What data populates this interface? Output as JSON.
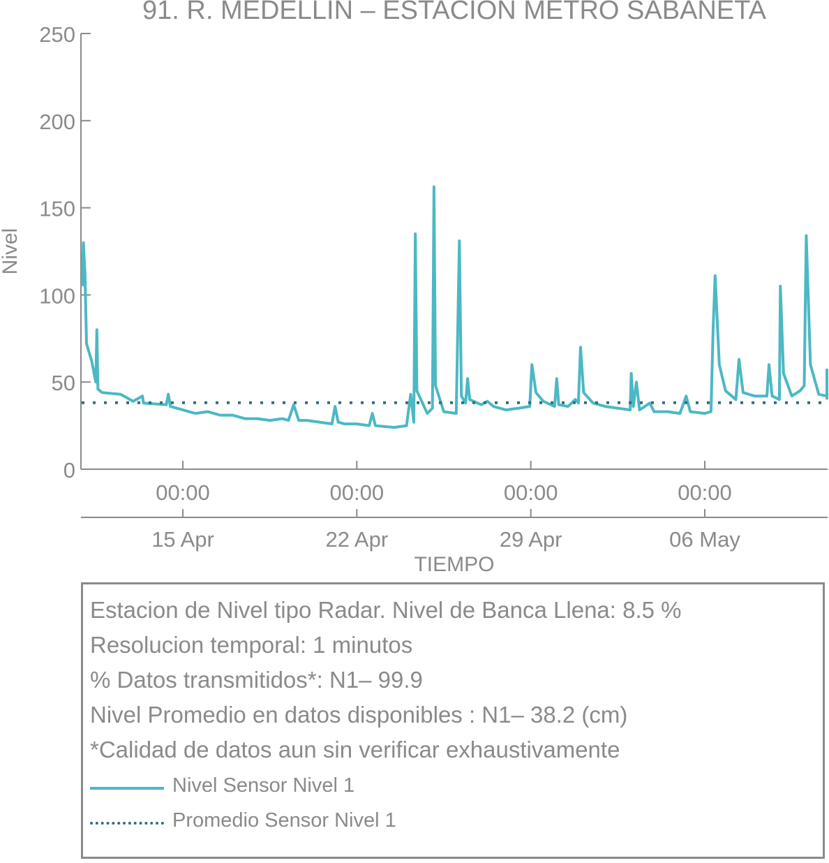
{
  "chart_data": {
    "type": "line",
    "title": "91. R. MEDELLIN – ESTACION METRO SABANETA",
    "xlabel": "TIEMPO",
    "ylabel": "Nivel",
    "ylim": [
      0,
      250
    ],
    "yticks": [
      "0",
      "50",
      "100",
      "150",
      "200",
      "250"
    ],
    "xlim_days": [
      "2024-04-09",
      "2024-05-12"
    ],
    "xticks": [
      {
        "time": "00:00",
        "date": "15 Apr",
        "day": "2024-04-15"
      },
      {
        "time": "00:00",
        "date": "22 Apr",
        "day": "2024-04-22"
      },
      {
        "time": "00:00",
        "date": "29 Apr",
        "day": "2024-04-29"
      },
      {
        "time": "00:00",
        "date": "06 May",
        "day": "2024-05-06"
      }
    ],
    "grid": false,
    "series": [
      {
        "name": "Nivel Sensor Nivel 1",
        "color": "#4cb8c4",
        "style": "solid",
        "points": [
          [
            "2024-04-10 23:00",
            105
          ],
          [
            "2024-04-11 00:00",
            130
          ],
          [
            "2024-04-11 01:30",
            112
          ],
          [
            "2024-04-11 03:00",
            72
          ],
          [
            "2024-04-11 08:00",
            62
          ],
          [
            "2024-04-11 12:00",
            50
          ],
          [
            "2024-04-11 13:00",
            80
          ],
          [
            "2024-04-11 14:00",
            46
          ],
          [
            "2024-04-11 18:00",
            44
          ],
          [
            "2024-04-12 12:00",
            43
          ],
          [
            "2024-04-13 00:00",
            39
          ],
          [
            "2024-04-13 09:00",
            42
          ],
          [
            "2024-04-13 10:00",
            38
          ],
          [
            "2024-04-14 08:00",
            37
          ],
          [
            "2024-04-14 10:00",
            43
          ],
          [
            "2024-04-14 12:00",
            36
          ],
          [
            "2024-04-15 00:00",
            34
          ],
          [
            "2024-04-15 12:00",
            32
          ],
          [
            "2024-04-16 00:00",
            33
          ],
          [
            "2024-04-16 12:00",
            31
          ],
          [
            "2024-04-17 00:00",
            31
          ],
          [
            "2024-04-17 12:00",
            29
          ],
          [
            "2024-04-18 00:00",
            29
          ],
          [
            "2024-04-18 12:00",
            28
          ],
          [
            "2024-04-19 00:00",
            29
          ],
          [
            "2024-04-19 06:00",
            28
          ],
          [
            "2024-04-19 11:00",
            37
          ],
          [
            "2024-04-19 16:00",
            28
          ],
          [
            "2024-04-20 00:00",
            28
          ],
          [
            "2024-04-20 12:00",
            27
          ],
          [
            "2024-04-21 00:00",
            26
          ],
          [
            "2024-04-21 03:00",
            36
          ],
          [
            "2024-04-21 06:00",
            27
          ],
          [
            "2024-04-21 12:00",
            26
          ],
          [
            "2024-04-22 00:00",
            26
          ],
          [
            "2024-04-22 12:00",
            25
          ],
          [
            "2024-04-22 15:00",
            32
          ],
          [
            "2024-04-22 18:00",
            25
          ],
          [
            "2024-04-23 12:00",
            24
          ],
          [
            "2024-04-24 00:00",
            25
          ],
          [
            "2024-04-24 04:00",
            43
          ],
          [
            "2024-04-24 07:00",
            27
          ],
          [
            "2024-04-24 08:30",
            135
          ],
          [
            "2024-04-24 10:00",
            45
          ],
          [
            "2024-04-24 20:00",
            32
          ],
          [
            "2024-04-25 01:00",
            35
          ],
          [
            "2024-04-25 02:30",
            162
          ],
          [
            "2024-04-25 04:00",
            48
          ],
          [
            "2024-04-25 12:00",
            33
          ],
          [
            "2024-04-26 00:00",
            32
          ],
          [
            "2024-04-26 03:00",
            131
          ],
          [
            "2024-04-26 05:00",
            42
          ],
          [
            "2024-04-26 09:00",
            38
          ],
          [
            "2024-04-26 11:00",
            52
          ],
          [
            "2024-04-26 13:00",
            40
          ],
          [
            "2024-04-27 00:00",
            37
          ],
          [
            "2024-04-27 06:00",
            39
          ],
          [
            "2024-04-27 12:00",
            36
          ],
          [
            "2024-04-28 00:00",
            34
          ],
          [
            "2024-04-28 12:00",
            35
          ],
          [
            "2024-04-28 23:00",
            36
          ],
          [
            "2024-04-29 01:00",
            60
          ],
          [
            "2024-04-29 05:00",
            44
          ],
          [
            "2024-04-29 12:00",
            39
          ],
          [
            "2024-04-29 23:00",
            36
          ],
          [
            "2024-04-30 01:00",
            52
          ],
          [
            "2024-04-30 03:00",
            37
          ],
          [
            "2024-04-30 12:00",
            36
          ],
          [
            "2024-04-30 19:00",
            40
          ],
          [
            "2024-04-30 22:00",
            38
          ],
          [
            "2024-05-01 00:00",
            70
          ],
          [
            "2024-05-01 03:00",
            44
          ],
          [
            "2024-05-01 12:00",
            38
          ],
          [
            "2024-05-02 00:00",
            36
          ],
          [
            "2024-05-02 12:00",
            35
          ],
          [
            "2024-05-03 00:00",
            34
          ],
          [
            "2024-05-03 01:00",
            55
          ],
          [
            "2024-05-03 03:00",
            36
          ],
          [
            "2024-05-03 06:00",
            50
          ],
          [
            "2024-05-03 09:00",
            34
          ],
          [
            "2024-05-03 19:00",
            38
          ],
          [
            "2024-05-03 23:00",
            33
          ],
          [
            "2024-05-04 12:00",
            33
          ],
          [
            "2024-05-05 00:00",
            32
          ],
          [
            "2024-05-05 06:00",
            42
          ],
          [
            "2024-05-05 10:00",
            33
          ],
          [
            "2024-05-06 00:00",
            32
          ],
          [
            "2024-05-06 06:00",
            33
          ],
          [
            "2024-05-06 08:00",
            80
          ],
          [
            "2024-05-06 10:00",
            111
          ],
          [
            "2024-05-06 14:00",
            60
          ],
          [
            "2024-05-06 20:00",
            45
          ],
          [
            "2024-05-07 06:00",
            40
          ],
          [
            "2024-05-07 09:00",
            63
          ],
          [
            "2024-05-07 13:00",
            44
          ],
          [
            "2024-05-08 00:00",
            42
          ],
          [
            "2024-05-08 12:00",
            42
          ],
          [
            "2024-05-08 14:00",
            60
          ],
          [
            "2024-05-08 17:00",
            42
          ],
          [
            "2024-05-09 00:00",
            40
          ],
          [
            "2024-05-09 01:00",
            105
          ],
          [
            "2024-05-09 04:00",
            55
          ],
          [
            "2024-05-09 12:00",
            42
          ],
          [
            "2024-05-09 20:00",
            45
          ],
          [
            "2024-05-10 00:00",
            48
          ],
          [
            "2024-05-10 02:00",
            134
          ],
          [
            "2024-05-10 06:00",
            60
          ],
          [
            "2024-05-10 14:00",
            43
          ],
          [
            "2024-05-11 00:00",
            42
          ],
          [
            "2024-05-11 03:00",
            57
          ],
          [
            "2024-05-11 06:00",
            43
          ],
          [
            "2024-05-11 12:00",
            40
          ],
          [
            "2024-05-12 00:00",
            40
          ]
        ]
      },
      {
        "name": "Promedio Sensor Nivel 1",
        "color": "#2e6f82",
        "style": "dotted",
        "points": [
          [
            "2024-04-10 22:00",
            38.2
          ],
          [
            "2024-05-12 00:00",
            38.2
          ]
        ]
      }
    ]
  },
  "info": {
    "lines": [
      "Estacion de Nivel tipo Radar. Nivel de Banca Llena:  8.5 %",
      "Resolucion temporal: 1 minutos",
      "% Datos transmitidos*: N1– 99.9",
      "Nivel Promedio en datos disponibles : N1– 38.2 (cm)",
      "*Calidad de datos aun sin verificar exhaustivamente"
    ],
    "legend": [
      {
        "label": "Nivel Sensor Nivel 1",
        "color": "#4cb8c4",
        "style": "solid"
      },
      {
        "label": "Promedio Sensor Nivel 1",
        "color": "#2e6f82",
        "style": "dotted"
      }
    ]
  }
}
